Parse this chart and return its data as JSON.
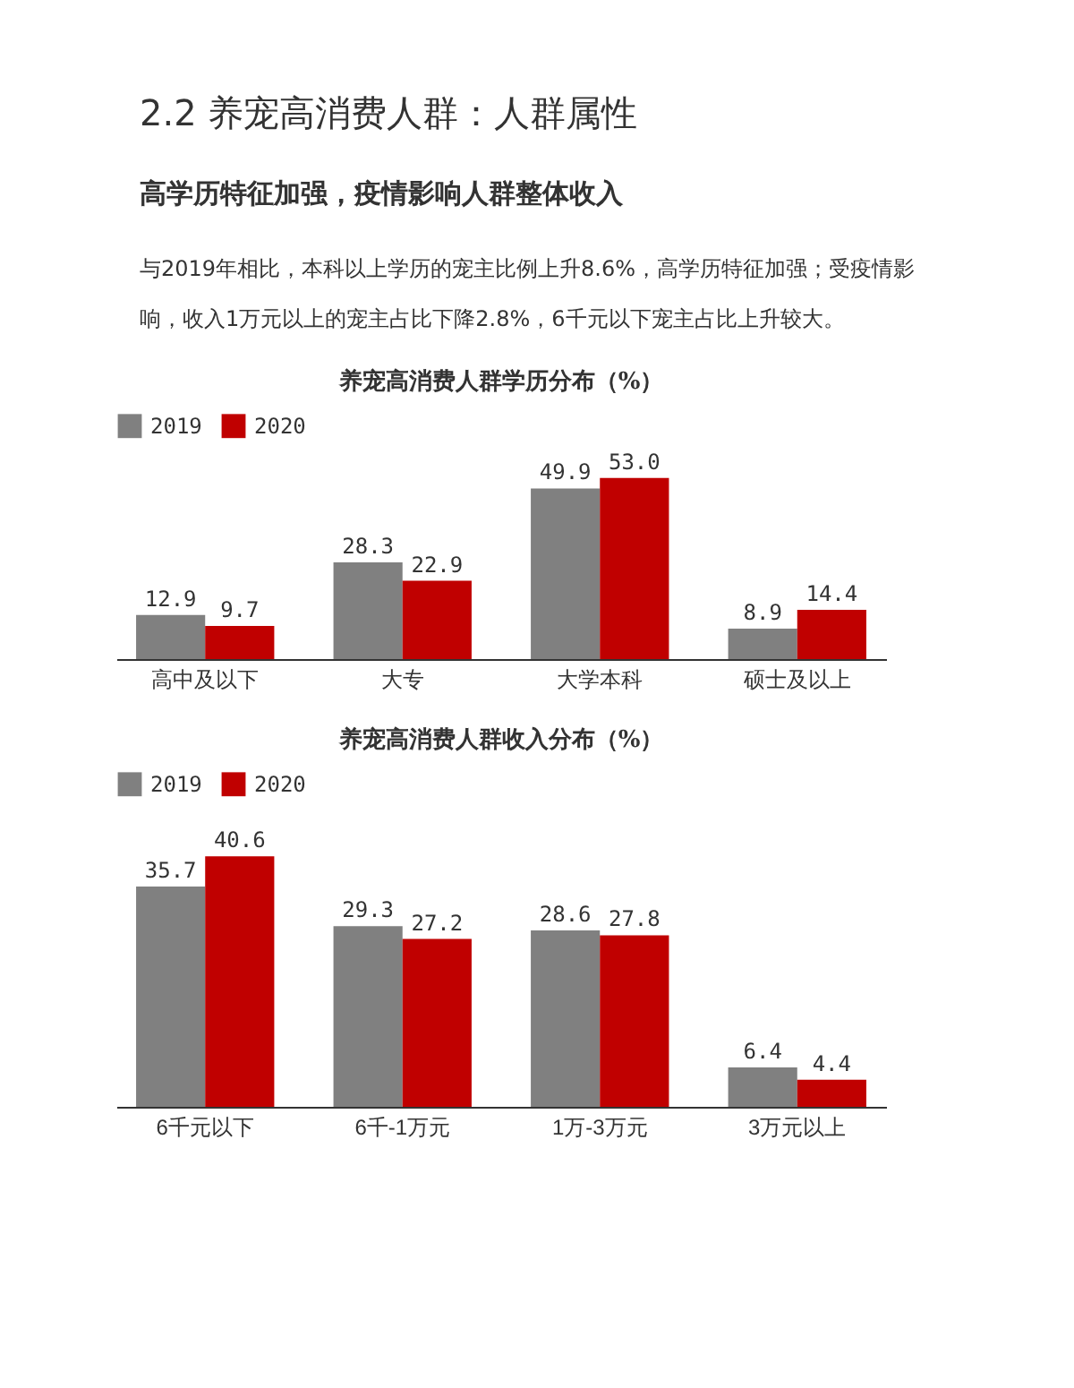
{
  "chart_data": [
    {
      "type": "bar",
      "title": "养宠高消费人群学历分布（%）",
      "annotations": [
        "2.2 养宠高消费人群：人群属性",
        "高学历特征加强，疫情影响人群整体收入",
        "与2019年相比，本科以上学历的宠主比例上升8.6%，高学历特征加强；受疫情影响，收入1万元以上的宠主占比下降2.8%，6千元以下宠主占比上升较大。"
      ],
      "categories": [
        "高中及以下",
        "大专",
        "大学本科",
        "硕士及以上"
      ],
      "series": [
        {
          "name": "2019",
          "color": "#808080",
          "values": [
            12.9,
            28.3,
            49.9,
            8.9
          ],
          "value_labels": [
            "12.9",
            "28.3",
            "49.9",
            "8.9"
          ]
        },
        {
          "name": "2020",
          "color": "#c00000",
          "values": [
            9.7,
            22.9,
            53.0,
            14.4
          ],
          "value_labels": [
            "9.7",
            "22.9",
            "53.0",
            "14.4"
          ]
        }
      ],
      "legend": "top",
      "grid": false
    },
    {
      "type": "bar",
      "title": "养宠高消费人群收入分布（%）",
      "categories": [
        "6千元以下",
        "6千-1万元",
        "1万-3万元",
        "3万元以上"
      ],
      "series": [
        {
          "name": "2019",
          "color": "#808080",
          "values": [
            35.7,
            29.3,
            28.6,
            6.4
          ],
          "value_labels": [
            "35.7",
            "29.3",
            "28.6",
            "6.4"
          ]
        },
        {
          "name": "2020",
          "color": "#c00000",
          "values": [
            40.6,
            27.2,
            27.8,
            4.4
          ],
          "value_labels": [
            "40.6",
            "27.2",
            "27.8",
            "4.4"
          ]
        }
      ],
      "legend": "top",
      "grid": false
    }
  ]
}
